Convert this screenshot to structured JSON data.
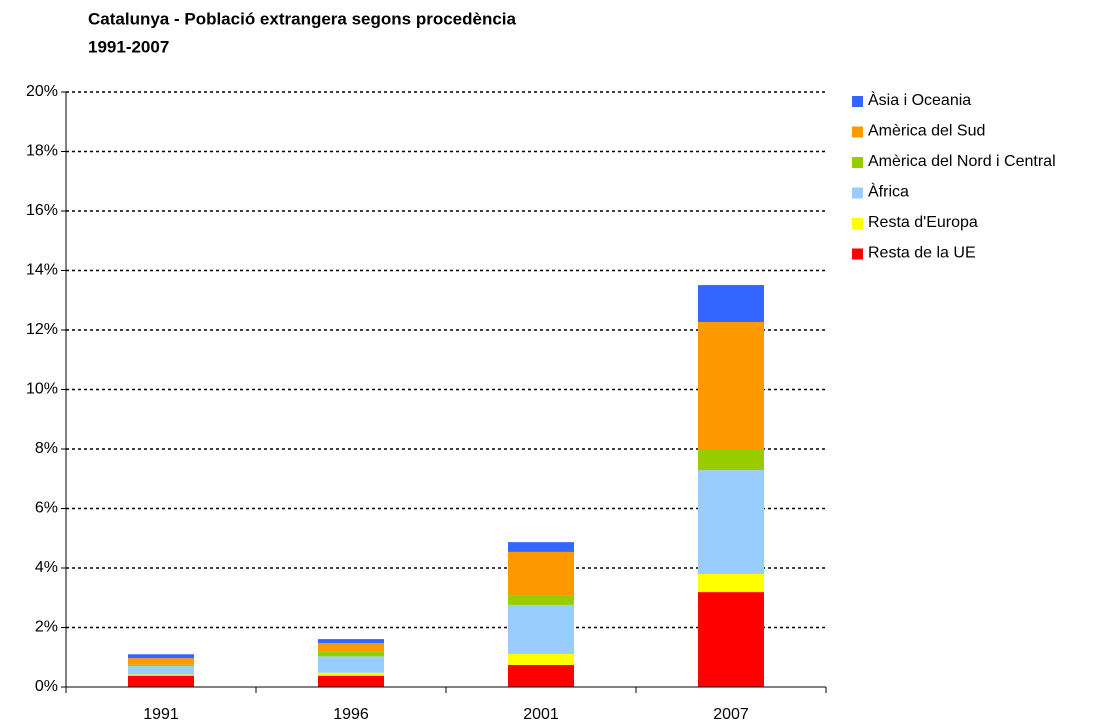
{
  "chart_data": {
    "type": "stacked_bar",
    "title": "Catalunya - Població extrangera segons procedència",
    "subtitle": "1991-2007",
    "categories": [
      "1991",
      "1996",
      "2001",
      "2007"
    ],
    "series": [
      {
        "name": "Resta de la UE",
        "color": "#ff0000",
        "values": [
          0.38,
          0.38,
          0.74,
          3.19
        ]
      },
      {
        "name": "Resta d'Europa",
        "color": "#ffff00",
        "values": [
          0.04,
          0.1,
          0.37,
          0.61
        ]
      },
      {
        "name": "Àfrica",
        "color": "#99ccff",
        "values": [
          0.28,
          0.55,
          1.65,
          3.49
        ]
      },
      {
        "name": "Amèrica del Nord i Central",
        "color": "#99cc00",
        "values": [
          0.05,
          0.17,
          0.33,
          0.71
        ]
      },
      {
        "name": "Amèrica del Sud",
        "color": "#ff9900",
        "values": [
          0.22,
          0.28,
          1.45,
          4.27
        ]
      },
      {
        "name": "Àsia i Oceania",
        "color": "#3366ff",
        "values": [
          0.13,
          0.13,
          0.33,
          1.24
        ]
      }
    ],
    "ylim": [
      0,
      20
    ],
    "yticks": [
      {
        "value": 0,
        "label": "0%"
      },
      {
        "value": 2,
        "label": "2%"
      },
      {
        "value": 4,
        "label": "4%"
      },
      {
        "value": 6,
        "label": "6%"
      },
      {
        "value": 8,
        "label": "8%"
      },
      {
        "value": 10,
        "label": "10%"
      },
      {
        "value": 12,
        "label": "12%"
      },
      {
        "value": 14,
        "label": "14%"
      },
      {
        "value": 16,
        "label": "16%"
      },
      {
        "value": 18,
        "label": "18%"
      },
      {
        "value": 20,
        "label": "20%"
      }
    ],
    "grid": true,
    "legend": "right"
  }
}
